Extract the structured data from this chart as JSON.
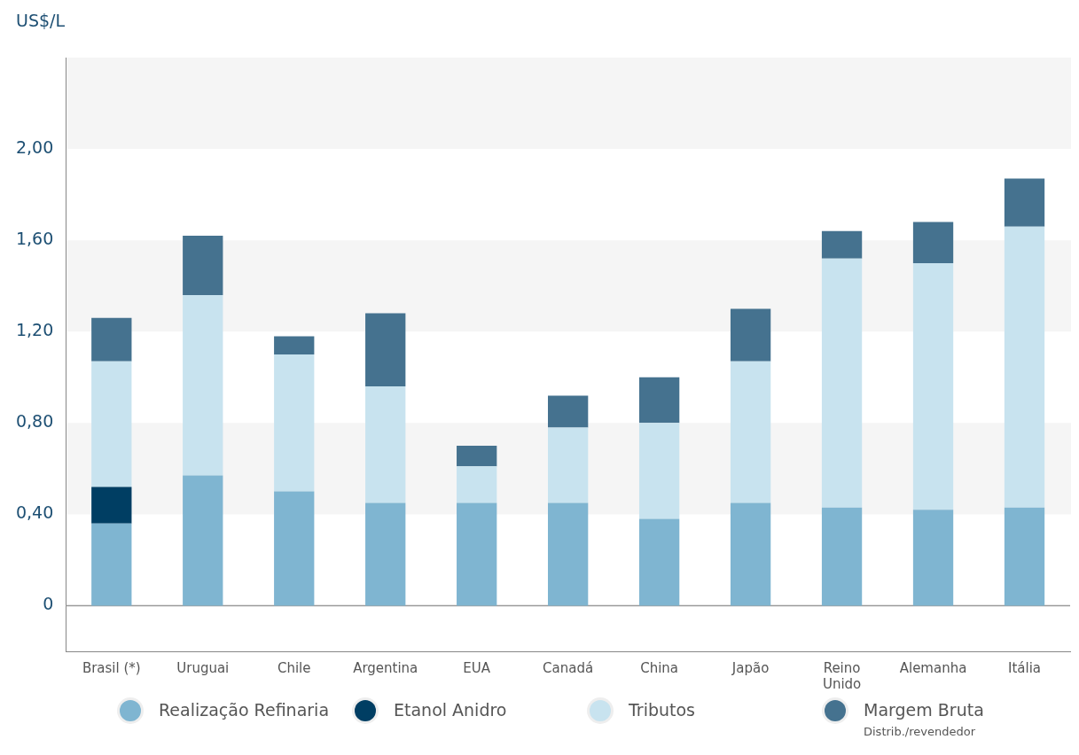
{
  "chart_data": {
    "type": "bar",
    "ylabel": "US$/L",
    "stacked": true,
    "categories": [
      "Brasil (*)",
      "Uruguai",
      "Chile",
      "Argentina",
      "EUA",
      "Canadá",
      "China",
      "Japão",
      "Reino Unido",
      "Alemanha",
      "Itália"
    ],
    "series": [
      {
        "name": "Realização Refinaria",
        "color": "#7fb5d1",
        "values": [
          0.36,
          0.57,
          0.5,
          0.45,
          0.45,
          0.45,
          0.38,
          0.45,
          0.43,
          0.42,
          0.43
        ]
      },
      {
        "name": "Etanol Anidro",
        "color": "#003e63",
        "values": [
          0.16,
          null,
          null,
          null,
          null,
          null,
          null,
          null,
          null,
          null,
          null
        ]
      },
      {
        "name": "Tributos",
        "color": "#c8e3ef",
        "values": [
          0.55,
          0.79,
          0.6,
          0.51,
          0.16,
          0.33,
          0.42,
          0.62,
          1.09,
          1.08,
          1.23
        ]
      },
      {
        "name": "Margem Bruta\nDistrib./revendedor",
        "color": "#45728f",
        "values": [
          0.19,
          0.26,
          0.08,
          0.32,
          0.09,
          0.14,
          0.2,
          0.23,
          0.12,
          0.18,
          0.21
        ]
      }
    ],
    "ylim": [
      -0.2,
      2.4
    ],
    "yticks": [
      0,
      {
        "value": 0.4,
        "label": "0,40"
      },
      {
        "value": 0.8,
        "label": "0,80"
      },
      {
        "value": 1.2,
        "label": "1,20"
      },
      {
        "value": 1.6,
        "label": "1,60"
      },
      {
        "value": 2.0,
        "label": "2,00"
      }
    ],
    "bands": [
      {
        "axis": "y",
        "from": 0.4,
        "to": 0.8,
        "color": "#f5f5f5"
      },
      {
        "axis": "y",
        "from": 1.2,
        "to": 1.6,
        "color": "#f5f5f5"
      },
      {
        "axis": "y",
        "from": 2.0,
        "to": 2.4,
        "color": "#f5f5f5"
      }
    ],
    "ref_lines": [
      {
        "axis": "y",
        "value": 0,
        "color": "#9a9a9a"
      }
    ],
    "grid": false,
    "legend": "bottom"
  }
}
